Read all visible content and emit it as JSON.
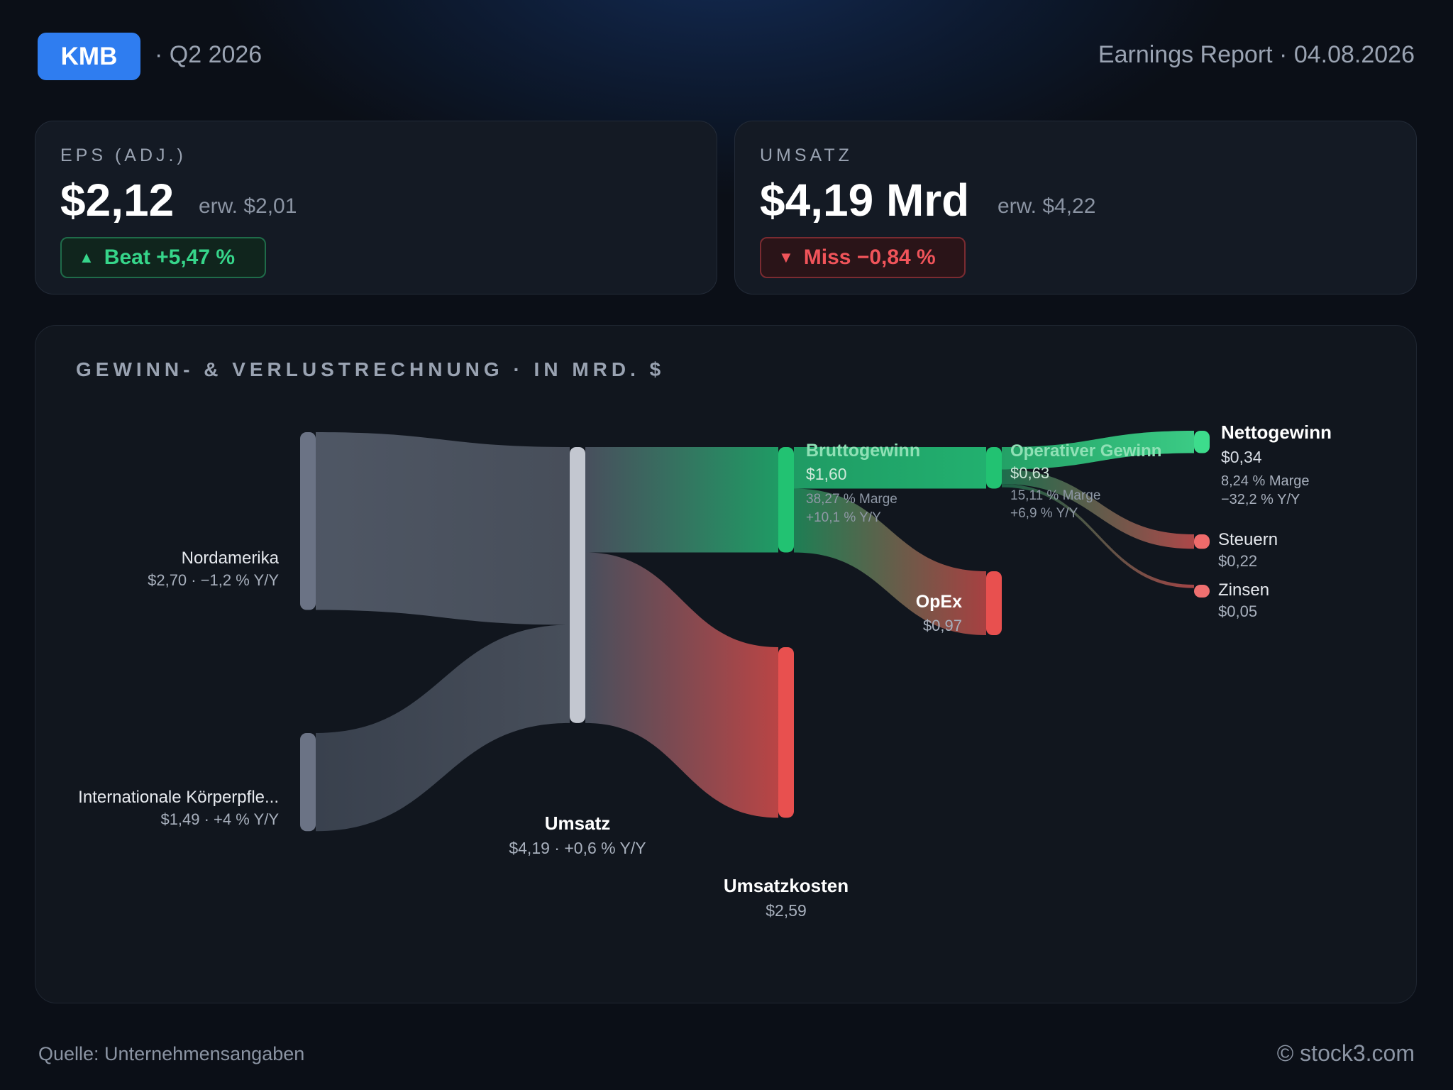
{
  "header": {
    "ticker": "KMB",
    "quarter": "· Q2 2026",
    "report": "Earnings Report · 04.08.2026"
  },
  "kpis": {
    "eps": {
      "label": "EPS (ADJ.)",
      "value": "$2,12",
      "expected": "erw. $2,01",
      "badge": "Beat +5,47 %",
      "badge_icon": "triangle-up-icon"
    },
    "revenue": {
      "label": "UMSATZ",
      "value": "$4,19 Mrd",
      "expected": "erw. $4,22",
      "badge": "Miss −0,84 %",
      "badge_icon": "triangle-down-icon"
    }
  },
  "colors": {
    "accent": "#2f7df0",
    "positive": "#22c272",
    "negative": "#e8504f",
    "source_node": "#6b7385",
    "revenue_node": "#c3c7d0"
  },
  "chart_title": "GEWINN- & VERLUSTRECHNUNG · IN MRD. $",
  "chart_data": {
    "type": "sankey",
    "title": "GEWINN- & VERLUSTRECHNUNG · IN MRD. $",
    "unit": "Mrd. $",
    "nodes": [
      {
        "id": "na",
        "name": "Nordamerika",
        "value": 2.7,
        "sub": "$2,70 · −1,2 % Y/Y"
      },
      {
        "id": "intl",
        "name": "Internationale Körperpfle...",
        "value": 1.49,
        "sub": "$1,49 · +4 % Y/Y"
      },
      {
        "id": "rev",
        "name": "Umsatz",
        "value": 4.19,
        "sub": "$4,19 · +0,6 % Y/Y"
      },
      {
        "id": "gp",
        "name": "Bruttogewinn",
        "value": 1.6,
        "sub": "$1,60",
        "margin": "38,27 % Marge",
        "yoy": "+10,1 % Y/Y"
      },
      {
        "id": "cogs",
        "name": "Umsatzkosten",
        "value": 2.59,
        "sub": "$2,59"
      },
      {
        "id": "op",
        "name": "Operativer Gewinn",
        "value": 0.63,
        "sub": "$0,63",
        "margin": "15,11 % Marge",
        "yoy": "+6,9 % Y/Y"
      },
      {
        "id": "opex",
        "name": "OpEx",
        "value": 0.97,
        "sub": "$0,97"
      },
      {
        "id": "net",
        "name": "Nettogewinn",
        "value": 0.34,
        "sub": "$0,34",
        "margin": "8,24 % Marge",
        "yoy": "−32,2 % Y/Y"
      },
      {
        "id": "tax",
        "name": "Steuern",
        "value": 0.22,
        "sub": "$0,22"
      },
      {
        "id": "int",
        "name": "Zinsen",
        "value": 0.05,
        "sub": "$0,05"
      }
    ],
    "links": [
      {
        "source": "na",
        "target": "rev",
        "value": 2.7
      },
      {
        "source": "intl",
        "target": "rev",
        "value": 1.49
      },
      {
        "source": "rev",
        "target": "gp",
        "value": 1.6
      },
      {
        "source": "rev",
        "target": "cogs",
        "value": 2.59
      },
      {
        "source": "gp",
        "target": "op",
        "value": 0.63
      },
      {
        "source": "gp",
        "target": "opex",
        "value": 0.97
      },
      {
        "source": "op",
        "target": "net",
        "value": 0.34
      },
      {
        "source": "op",
        "target": "tax",
        "value": 0.22
      },
      {
        "source": "op",
        "target": "int",
        "value": 0.05
      }
    ]
  },
  "footer": {
    "source": "Quelle: Unternehmensangaben",
    "copyright": "© stock3.com"
  }
}
